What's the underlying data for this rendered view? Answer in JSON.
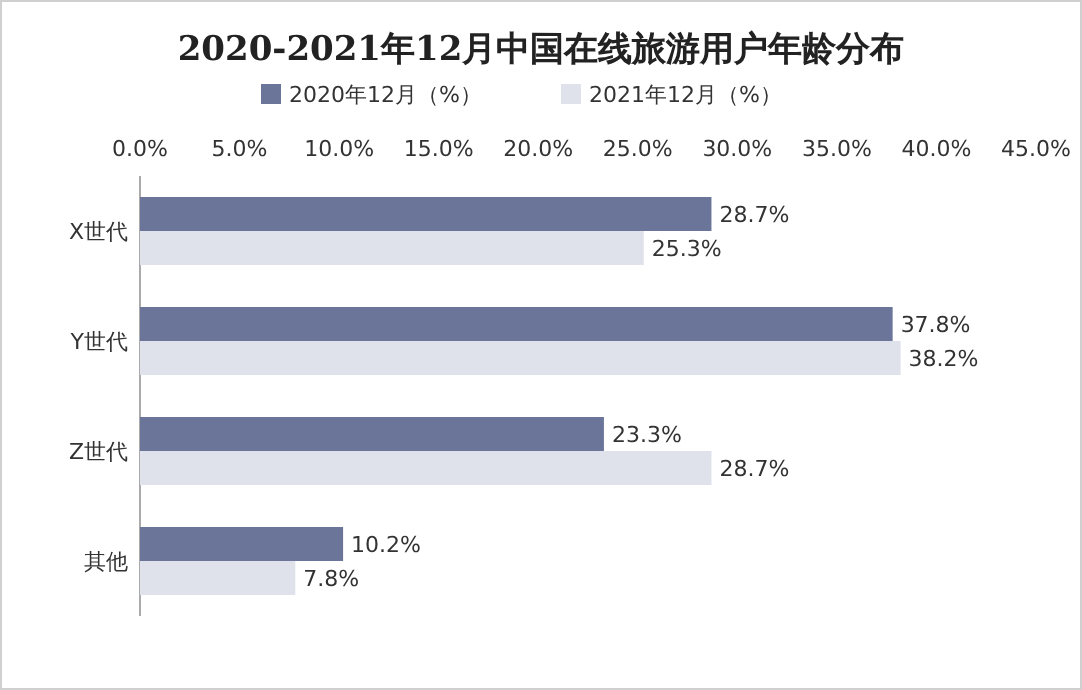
{
  "chart_data": {
    "type": "bar",
    "orientation": "horizontal",
    "title": "2020-2021年12月中国在线旅游用户年龄分布",
    "categories": [
      "X世代",
      "Y世代",
      "Z世代",
      "其他"
    ],
    "series": [
      {
        "name": "2020年12月（%）",
        "color": "#6b7599",
        "values": [
          28.7,
          37.8,
          23.3,
          10.2
        ],
        "value_labels": [
          "28.7%",
          "37.8%",
          "23.3%",
          "10.2%"
        ]
      },
      {
        "name": "2021年12月（%）",
        "color": "#dfe2ea",
        "values": [
          25.3,
          38.2,
          28.7,
          7.8
        ],
        "value_labels": [
          "25.3%",
          "38.2%",
          "28.7%",
          "7.8%"
        ]
      }
    ],
    "xlim": [
      0,
      45
    ],
    "xticks": [
      {
        "value": 0,
        "label": "0.0%"
      },
      {
        "value": 5,
        "label": "5.0%"
      },
      {
        "value": 10,
        "label": "10.0%"
      },
      {
        "value": 15,
        "label": "15.0%"
      },
      {
        "value": 20,
        "label": "20.0%"
      },
      {
        "value": 25,
        "label": "25.0%"
      },
      {
        "value": 30,
        "label": "30.0%"
      },
      {
        "value": 35,
        "label": "35.0%"
      },
      {
        "value": 40,
        "label": "40.0%"
      },
      {
        "value": 45,
        "label": "45.0%"
      }
    ],
    "legend": "top"
  }
}
